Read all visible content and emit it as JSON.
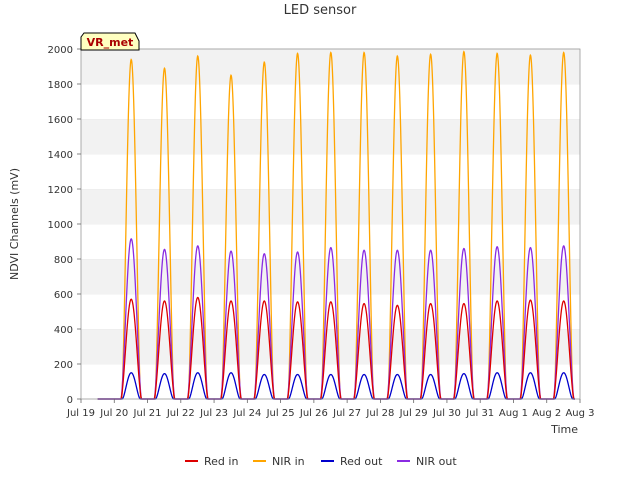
{
  "chart_data": {
    "type": "line",
    "title": "LED sensor",
    "xlabel": "Time",
    "ylabel": "NDVI Channels (mV)",
    "ylim": [
      0,
      2000
    ],
    "yticks": [
      0,
      200,
      400,
      600,
      800,
      1000,
      1200,
      1400,
      1600,
      1800,
      2000
    ],
    "xlim": [
      "2023-07-19",
      "2023-08-03"
    ],
    "xtick_labels": [
      "Jul 19",
      "Jul 20",
      "Jul 21",
      "Jul 22",
      "Jul 23",
      "Jul 24",
      "Jul 25",
      "Jul 26",
      "Jul 27",
      "Jul 28",
      "Jul 29",
      "Jul 30",
      "Jul 31",
      "Aug 1",
      "Aug 2",
      "Aug 3"
    ],
    "day_labels": [
      "Jul 19",
      "Jul 20",
      "Jul 21",
      "Jul 22",
      "Jul 23",
      "Jul 24",
      "Jul 25",
      "Jul 26",
      "Jul 27",
      "Jul 28",
      "Jul 29",
      "Jul 30",
      "Jul 31",
      "Aug 1",
      "Aug 2"
    ],
    "grid": "horizontal bands",
    "legend_position": "bottom",
    "annotation": "VR_met",
    "series": [
      {
        "name": "Red in",
        "color": "#dd0000",
        "daily_peak": [
          0,
          570,
          560,
          580,
          560,
          560,
          555,
          555,
          545,
          535,
          545,
          545,
          560,
          565,
          560
        ]
      },
      {
        "name": "NIR in",
        "color": "#ffa500",
        "daily_peak": [
          0,
          1940,
          1890,
          1960,
          1850,
          1925,
          1975,
          1980,
          1980,
          1960,
          1970,
          1985,
          1975,
          1965,
          1980
        ]
      },
      {
        "name": "Red out",
        "color": "#0000cc",
        "daily_peak": [
          0,
          150,
          145,
          150,
          150,
          140,
          140,
          140,
          140,
          140,
          140,
          145,
          150,
          150,
          150
        ]
      },
      {
        "name": "NIR out",
        "color": "#8a2be2",
        "daily_peak": [
          0,
          915,
          855,
          875,
          845,
          830,
          840,
          865,
          850,
          850,
          850,
          860,
          870,
          865,
          875
        ]
      }
    ]
  }
}
